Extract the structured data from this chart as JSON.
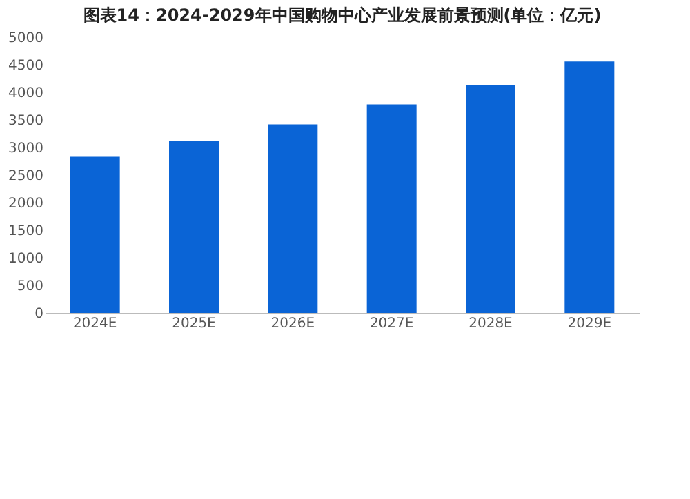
{
  "chart_data": {
    "type": "bar",
    "title": "图表14：2024-2029年中国购物中心产业发展前景预测(单位：亿元)",
    "categories": [
      "2024E",
      "2025E",
      "2026E",
      "2027E",
      "2028E",
      "2029E"
    ],
    "values": [
      2830,
      3120,
      3420,
      3780,
      4130,
      4560
    ],
    "color": "#0a64d6",
    "ylim": [
      0,
      5000
    ],
    "yticks": [
      0,
      500,
      1000,
      1500,
      2000,
      2500,
      3000,
      3500,
      4000,
      4500,
      5000
    ],
    "grid": false
  }
}
